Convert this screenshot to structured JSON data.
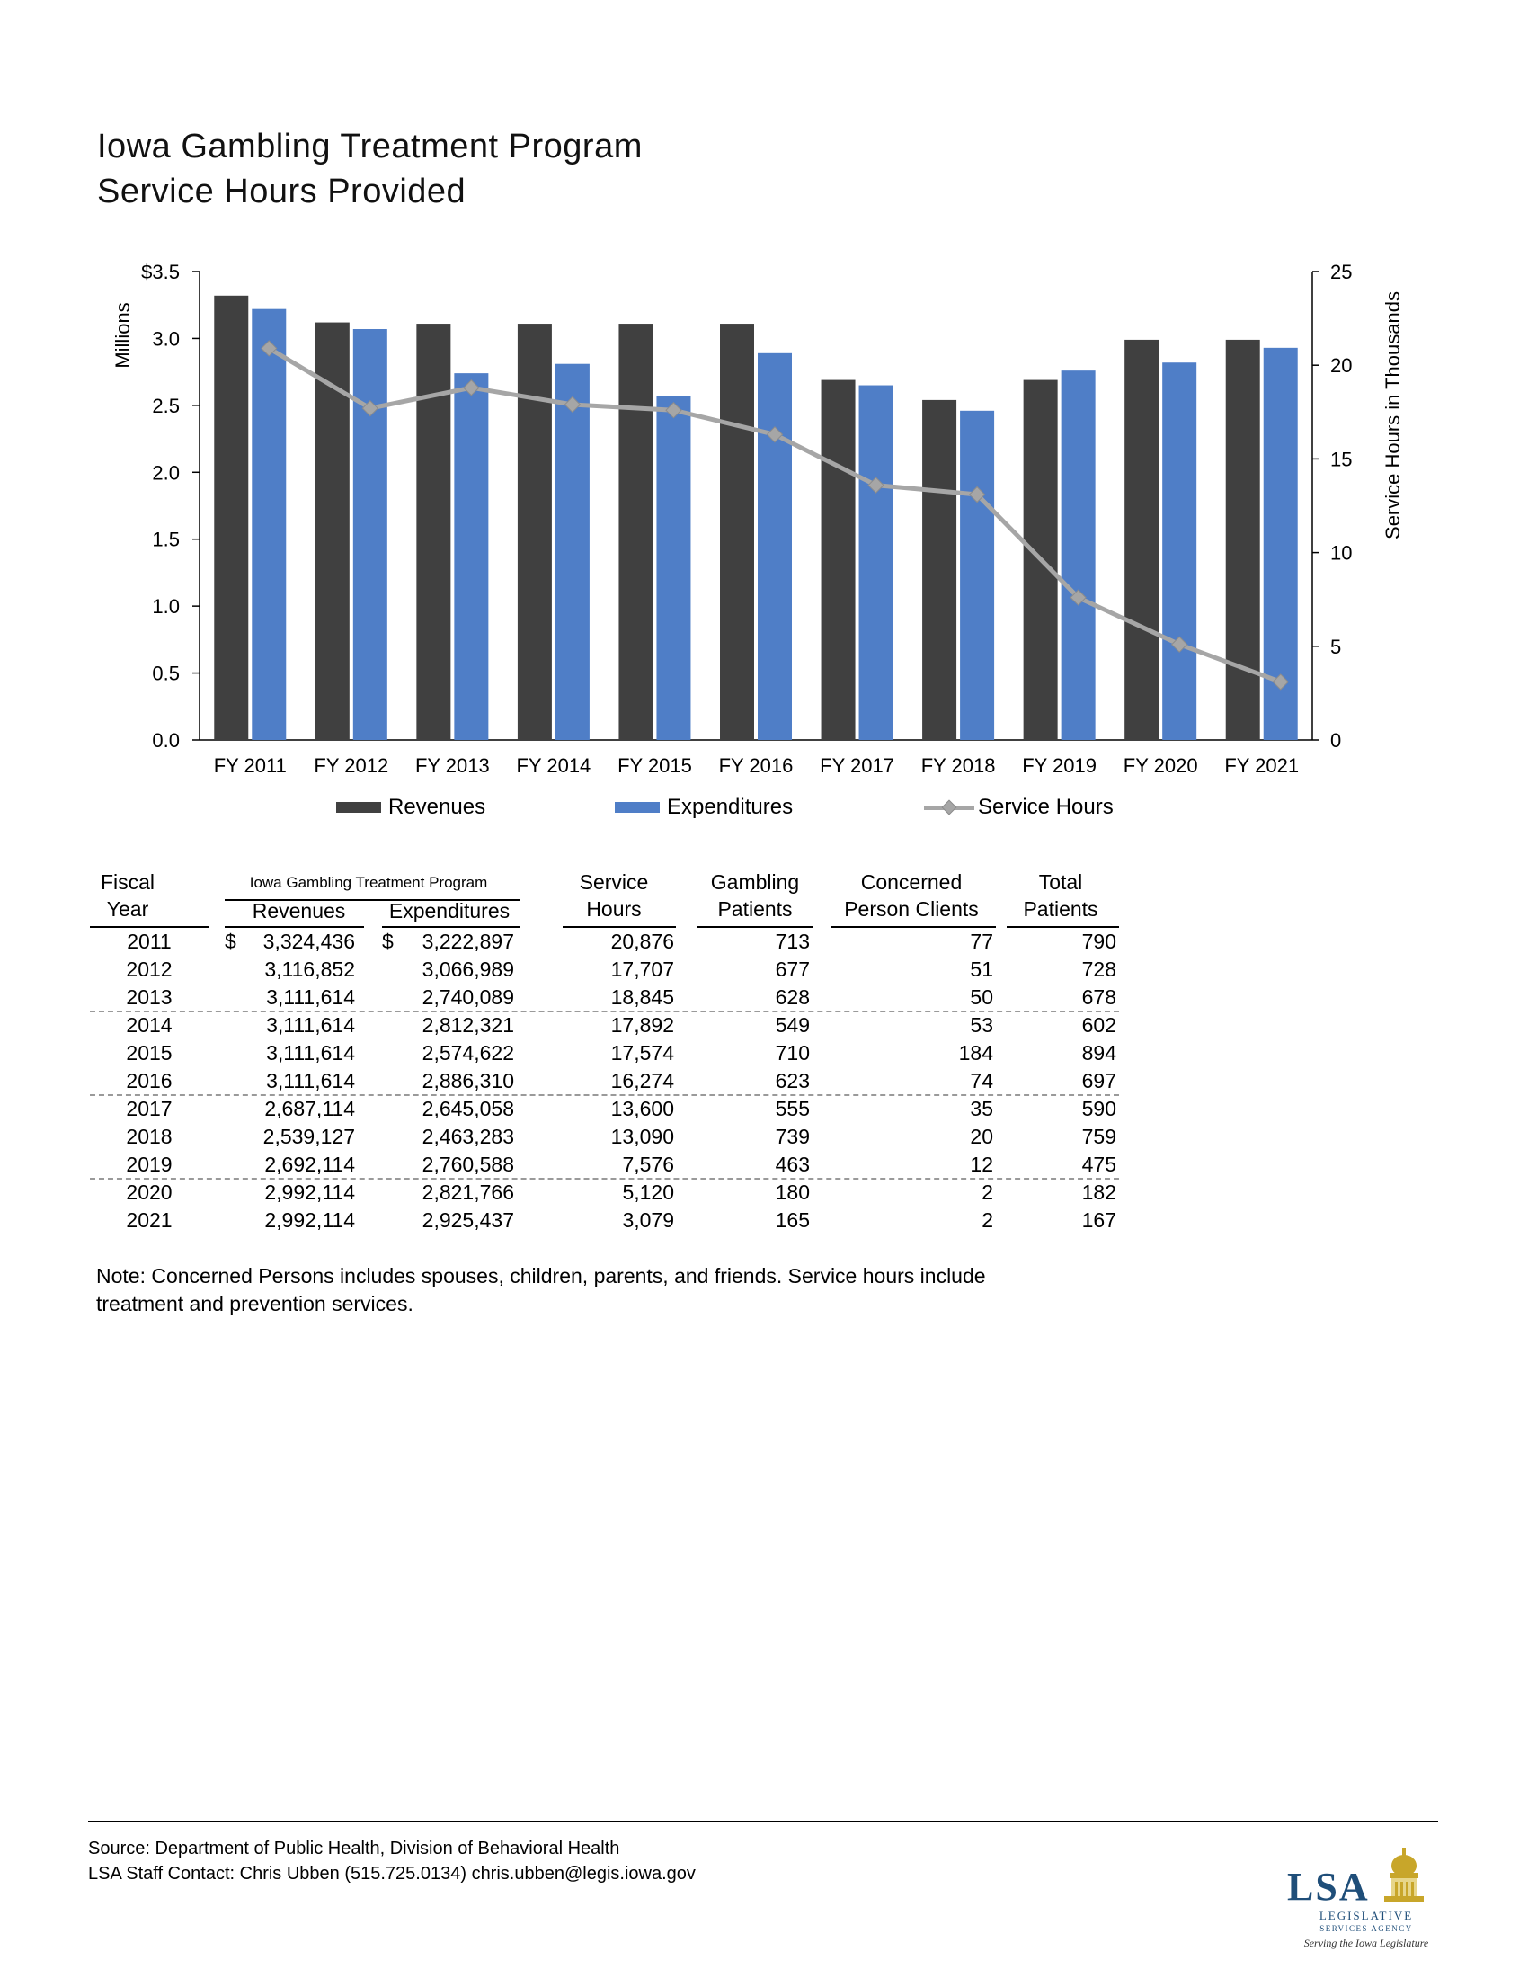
{
  "title": {
    "line1": "Iowa Gambling Treatment Program",
    "line2": "Service Hours Provided"
  },
  "chart_data": {
    "type": "bar",
    "categories": [
      "FY 2011",
      "FY 2012",
      "FY 2013",
      "FY 2014",
      "FY 2015",
      "FY 2016",
      "FY 2017",
      "FY 2018",
      "FY 2019",
      "FY 2020",
      "FY 2021"
    ],
    "series": [
      {
        "name": "Revenues",
        "type": "bar",
        "axis": "left",
        "color": "#404040",
        "values": [
          3.32,
          3.12,
          3.11,
          3.11,
          3.11,
          3.11,
          2.69,
          2.54,
          2.69,
          2.99,
          2.99
        ]
      },
      {
        "name": "Expenditures",
        "type": "bar",
        "axis": "left",
        "color": "#4f7ec7",
        "values": [
          3.22,
          3.07,
          2.74,
          2.81,
          2.57,
          2.89,
          2.65,
          2.46,
          2.76,
          2.82,
          2.93
        ]
      },
      {
        "name": "Service Hours",
        "type": "line",
        "axis": "right",
        "color": "#a6a6a6",
        "values": [
          20.9,
          17.7,
          18.8,
          17.9,
          17.6,
          16.3,
          13.6,
          13.1,
          7.6,
          5.1,
          3.1
        ]
      }
    ],
    "ylabel": "Millions",
    "y2label": "Service  Hours in Thousands",
    "ylim": [
      0,
      3.5
    ],
    "y2lim": [
      0,
      25
    ],
    "yticks": [
      "0.0",
      "0.5",
      "1.0",
      "1.5",
      "2.0",
      "2.5",
      "3.0",
      "$3.5"
    ],
    "y2ticks": [
      "0",
      "5",
      "10",
      "15",
      "20",
      "25"
    ],
    "grid": false,
    "legend_position": "bottom"
  },
  "table": {
    "group_title": "Iowa Gambling Treatment Program",
    "headers": {
      "fiscal": [
        "Fiscal",
        "Year"
      ],
      "revenues": "Revenues",
      "expenditures": "Expenditures",
      "service": [
        "Service",
        "Hours"
      ],
      "gambling": [
        "Gambling",
        "Patients"
      ],
      "concerned": [
        "Concerned",
        "Person Clients"
      ],
      "total": [
        "Total",
        "Patients"
      ]
    },
    "currency_symbol": "$",
    "rows": [
      {
        "year": "2011",
        "rev": "3,324,436",
        "exp": "3,222,897",
        "hours": "20,876",
        "gamb": "713",
        "conc": "77",
        "total": "790"
      },
      {
        "year": "2012",
        "rev": "3,116,852",
        "exp": "3,066,989",
        "hours": "17,707",
        "gamb": "677",
        "conc": "51",
        "total": "728"
      },
      {
        "year": "2013",
        "rev": "3,111,614",
        "exp": "2,740,089",
        "hours": "18,845",
        "gamb": "628",
        "conc": "50",
        "total": "678"
      },
      {
        "year": "2014",
        "rev": "3,111,614",
        "exp": "2,812,321",
        "hours": "17,892",
        "gamb": "549",
        "conc": "53",
        "total": "602"
      },
      {
        "year": "2015",
        "rev": "3,111,614",
        "exp": "2,574,622",
        "hours": "17,574",
        "gamb": "710",
        "conc": "184",
        "total": "894"
      },
      {
        "year": "2016",
        "rev": "3,111,614",
        "exp": "2,886,310",
        "hours": "16,274",
        "gamb": "623",
        "conc": "74",
        "total": "697"
      },
      {
        "year": "2017",
        "rev": "2,687,114",
        "exp": "2,645,058",
        "hours": "13,600",
        "gamb": "555",
        "conc": "35",
        "total": "590"
      },
      {
        "year": "2018",
        "rev": "2,539,127",
        "exp": "2,463,283",
        "hours": "13,090",
        "gamb": "739",
        "conc": "20",
        "total": "759"
      },
      {
        "year": "2019",
        "rev": "2,692,114",
        "exp": "2,760,588",
        "hours": "7,576",
        "gamb": "463",
        "conc": "12",
        "total": "475"
      },
      {
        "year": "2020",
        "rev": "2,992,114",
        "exp": "2,821,766",
        "hours": "5,120",
        "gamb": "180",
        "conc": "2",
        "total": "182"
      },
      {
        "year": "2021",
        "rev": "2,992,114",
        "exp": "2,925,437",
        "hours": "3,079",
        "gamb": "165",
        "conc": "2",
        "total": "167"
      }
    ]
  },
  "note": "Note:  Concerned Persons includes spouses, children, parents, and friends.   Service hours include treatment and prevention services.",
  "source": {
    "line1": "Source:  Department of Public Health, Division of Behavioral Health",
    "line2": "LSA Staff Contact:  Chris Ubben (515.725.0134) chris.ubben@legis.iowa.gov"
  },
  "logo": {
    "name": "LSA",
    "line1": "LEGISLATIVE",
    "line2": "SERVICES AGENCY",
    "tagline": "Serving the Iowa Legislature"
  },
  "colors": {
    "revenues": "#404040",
    "expenditures": "#4f7ec7",
    "service_hours": "#a6a6a6",
    "logo_blue": "#1f4e79",
    "logo_gold": "#c8a62a"
  }
}
